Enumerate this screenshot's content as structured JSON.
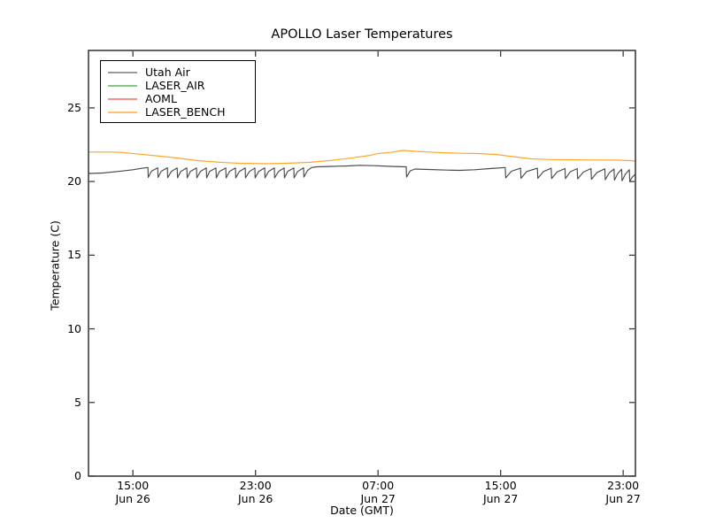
{
  "chart_data": {
    "type": "line",
    "title": "APOLLO Laser Temperatures",
    "xlabel": "Date (GMT)",
    "ylabel": "Temperature (C)",
    "grid": false,
    "legend_position": "upper left",
    "ylim": [
      0,
      28.9
    ],
    "xlim_hours": [
      0.1,
      35.8
    ],
    "x_unit": "hours since Jun 26 12:00 GMT",
    "yticks": [
      0,
      5,
      10,
      15,
      20,
      25
    ],
    "xticks": [
      {
        "hour": 3,
        "time": "15:00",
        "date": "Jun 26"
      },
      {
        "hour": 11,
        "time": "23:00",
        "date": "Jun 26"
      },
      {
        "hour": 19,
        "time": "07:00",
        "date": "Jun 27"
      },
      {
        "hour": 27,
        "time": "15:00",
        "date": "Jun 27"
      },
      {
        "hour": 35,
        "time": "23:00",
        "date": "Jun 27"
      }
    ],
    "axis_color": "#3c3c3c",
    "series": [
      {
        "name": "Utah Air",
        "color": "#4a4a4a",
        "legend_color": "#9b9b9b",
        "points": [
          [
            0.12,
            20.55
          ],
          [
            1.0,
            20.58
          ],
          [
            2.0,
            20.68
          ],
          [
            3.0,
            20.8
          ],
          [
            3.6,
            20.9
          ],
          [
            3.98,
            20.95
          ],
          [
            4.0,
            20.28
          ],
          [
            4.2,
            20.7
          ],
          [
            4.62,
            20.93
          ],
          [
            4.64,
            20.28
          ],
          [
            4.85,
            20.7
          ],
          [
            5.25,
            20.93
          ],
          [
            5.27,
            20.26
          ],
          [
            5.5,
            20.68
          ],
          [
            5.89,
            20.92
          ],
          [
            5.91,
            20.26
          ],
          [
            6.12,
            20.68
          ],
          [
            6.52,
            20.92
          ],
          [
            6.54,
            20.25
          ],
          [
            6.75,
            20.68
          ],
          [
            7.15,
            20.92
          ],
          [
            7.17,
            20.25
          ],
          [
            7.4,
            20.68
          ],
          [
            7.79,
            20.92
          ],
          [
            7.81,
            20.25
          ],
          [
            8.0,
            20.68
          ],
          [
            8.42,
            20.92
          ],
          [
            8.44,
            20.25
          ],
          [
            8.65,
            20.68
          ],
          [
            9.06,
            20.92
          ],
          [
            9.08,
            20.25
          ],
          [
            9.3,
            20.68
          ],
          [
            9.69,
            20.92
          ],
          [
            9.71,
            20.25
          ],
          [
            9.95,
            20.68
          ],
          [
            10.33,
            20.92
          ],
          [
            10.35,
            20.25
          ],
          [
            10.6,
            20.68
          ],
          [
            10.96,
            20.92
          ],
          [
            10.98,
            20.25
          ],
          [
            11.2,
            20.68
          ],
          [
            11.6,
            20.92
          ],
          [
            11.62,
            20.25
          ],
          [
            11.85,
            20.68
          ],
          [
            12.23,
            20.92
          ],
          [
            12.25,
            20.25
          ],
          [
            12.5,
            20.68
          ],
          [
            12.87,
            20.92
          ],
          [
            12.89,
            20.25
          ],
          [
            13.1,
            20.68
          ],
          [
            13.5,
            20.92
          ],
          [
            13.52,
            20.25
          ],
          [
            13.75,
            20.68
          ],
          [
            14.14,
            20.93
          ],
          [
            14.16,
            20.3
          ],
          [
            14.4,
            20.75
          ],
          [
            14.66,
            20.95
          ],
          [
            15.0,
            21.0
          ],
          [
            16.0,
            21.03
          ],
          [
            17.0,
            21.06
          ],
          [
            17.8,
            21.1
          ],
          [
            18.8,
            21.08
          ],
          [
            19.8,
            21.03
          ],
          [
            20.84,
            21.0
          ],
          [
            20.86,
            20.3
          ],
          [
            21.1,
            20.72
          ],
          [
            21.4,
            20.85
          ],
          [
            22.3,
            20.82
          ],
          [
            23.3,
            20.78
          ],
          [
            24.3,
            20.76
          ],
          [
            25.3,
            20.8
          ],
          [
            26.3,
            20.88
          ],
          [
            27.3,
            20.95
          ],
          [
            27.33,
            20.25
          ],
          [
            27.7,
            20.7
          ],
          [
            28.3,
            20.9
          ],
          [
            28.33,
            20.22
          ],
          [
            28.7,
            20.68
          ],
          [
            29.4,
            20.9
          ],
          [
            29.43,
            20.22
          ],
          [
            29.8,
            20.68
          ],
          [
            30.3,
            20.9
          ],
          [
            30.33,
            20.2
          ],
          [
            30.7,
            20.66
          ],
          [
            31.2,
            20.88
          ],
          [
            31.23,
            20.2
          ],
          [
            31.55,
            20.66
          ],
          [
            32.0,
            20.88
          ],
          [
            32.03,
            20.18
          ],
          [
            32.4,
            20.64
          ],
          [
            32.9,
            20.88
          ],
          [
            32.93,
            20.15
          ],
          [
            33.3,
            20.62
          ],
          [
            33.8,
            20.86
          ],
          [
            33.83,
            20.12
          ],
          [
            34.1,
            20.6
          ],
          [
            34.4,
            20.85
          ],
          [
            34.43,
            20.1
          ],
          [
            34.65,
            20.55
          ],
          [
            34.9,
            20.83
          ],
          [
            34.93,
            20.05
          ],
          [
            35.15,
            20.5
          ],
          [
            35.4,
            20.8
          ],
          [
            35.43,
            20.0
          ],
          [
            35.6,
            20.3
          ],
          [
            35.8,
            20.5
          ]
        ]
      },
      {
        "name": "LASER_AIR",
        "color": "#85c985",
        "legend_color": "#85c985",
        "points": []
      },
      {
        "name": "AOML",
        "color": "#f49090",
        "legend_color": "#f49090",
        "points": []
      },
      {
        "name": "LASER_BENCH",
        "color": "#ffa629",
        "legend_color": "#fdc06c",
        "points": [
          [
            0.12,
            22.0
          ],
          [
            1.5,
            22.0
          ],
          [
            2.2,
            21.98
          ],
          [
            3.5,
            21.85
          ],
          [
            4.5,
            21.75
          ],
          [
            5.9,
            21.6
          ],
          [
            7.2,
            21.42
          ],
          [
            8.8,
            21.3
          ],
          [
            10.0,
            21.24
          ],
          [
            11.7,
            21.21
          ],
          [
            13.0,
            21.24
          ],
          [
            14.5,
            21.3
          ],
          [
            15.8,
            21.42
          ],
          [
            17.4,
            21.62
          ],
          [
            18.5,
            21.78
          ],
          [
            19.0,
            21.9
          ],
          [
            19.8,
            21.98
          ],
          [
            20.6,
            22.11
          ],
          [
            21.5,
            22.05
          ],
          [
            22.3,
            22.0
          ],
          [
            23.2,
            21.96
          ],
          [
            24.5,
            21.92
          ],
          [
            25.5,
            21.9
          ],
          [
            26.7,
            21.84
          ],
          [
            27.8,
            21.69
          ],
          [
            29.0,
            21.54
          ],
          [
            30.1,
            21.5
          ],
          [
            31.5,
            21.48
          ],
          [
            32.4,
            21.47
          ],
          [
            33.5,
            21.46
          ],
          [
            34.7,
            21.45
          ],
          [
            35.5,
            21.42
          ],
          [
            35.8,
            21.38
          ]
        ]
      }
    ]
  }
}
